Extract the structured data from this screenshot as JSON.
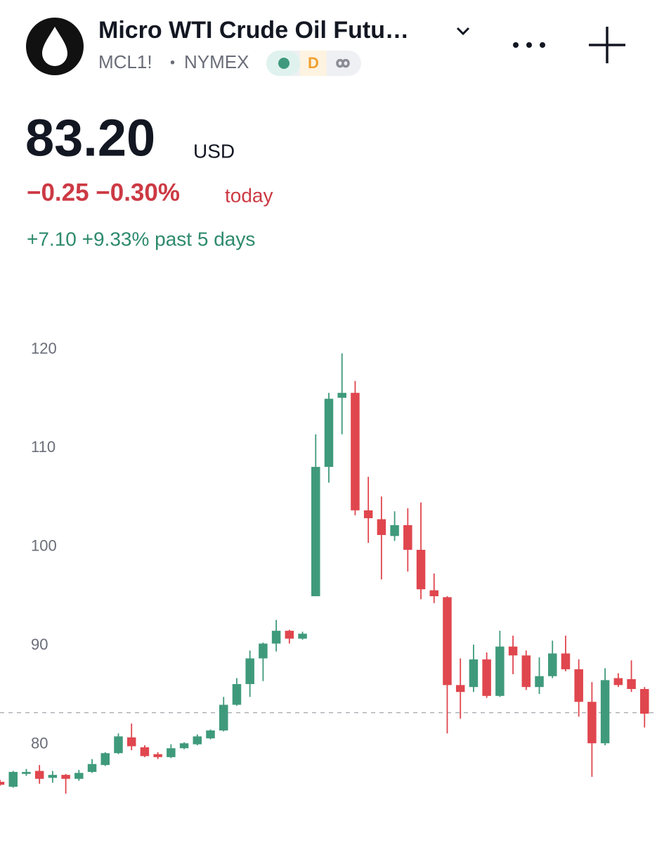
{
  "header": {
    "title": "Micro WTI Crude Oil Futu…",
    "symbol": "MCL1!",
    "separator": "•",
    "exchange": "NYMEX",
    "badge": "D"
  },
  "price": {
    "last": "83.20",
    "currency": "USD",
    "change_today": "−0.25 −0.30%",
    "today_label": "today",
    "change_5d": "+7.10 +9.33% past 5 days"
  },
  "chart_data": {
    "type": "candlestick",
    "open": [
      76.2,
      75.7,
      77.0,
      77.3,
      76.6,
      76.9,
      76.5,
      77.2,
      77.9,
      79.1,
      80.7,
      79.7,
      79.0,
      78.7,
      79.6,
      80.0,
      80.6,
      81.4,
      84.0,
      86.1,
      88.7,
      90.2,
      91.5,
      90.7,
      95.0,
      108.1,
      115.1,
      115.6,
      103.7,
      102.8,
      101.1,
      102.2,
      99.7,
      95.6,
      94.9,
      86.0,
      85.8,
      88.6,
      84.9,
      89.9,
      89.0,
      85.8,
      86.9,
      89.2,
      87.6,
      84.3,
      80.1,
      86.7,
      86.6,
      85.6
    ],
    "high": [
      76.4,
      77.3,
      77.5,
      77.9,
      77.3,
      77.0,
      77.4,
      78.5,
      79.2,
      81.1,
      82.1,
      79.9,
      79.2,
      80.0,
      80.2,
      81.0,
      81.5,
      84.8,
      86.7,
      89.5,
      90.3,
      92.6,
      91.6,
      91.4,
      111.4,
      115.6,
      119.6,
      116.8,
      107.1,
      105.1,
      103.6,
      103.9,
      104.5,
      97.3,
      95.0,
      88.7,
      90.1,
      89.3,
      91.5,
      91.0,
      89.5,
      88.8,
      90.5,
      91.0,
      88.6,
      86.3,
      87.7,
      87.2,
      88.5,
      85.8
    ],
    "low": [
      75.8,
      75.6,
      76.8,
      76.0,
      76.1,
      75.0,
      76.3,
      77.1,
      77.8,
      79.0,
      79.4,
      78.7,
      78.5,
      78.6,
      79.5,
      79.9,
      80.5,
      81.3,
      83.9,
      84.8,
      86.4,
      89.4,
      90.2,
      90.6,
      95.0,
      106.5,
      111.4,
      103.2,
      100.4,
      96.7,
      100.6,
      97.5,
      94.7,
      94.3,
      81.1,
      82.6,
      85.3,
      84.7,
      84.8,
      87.1,
      85.5,
      85.1,
      86.7,
      87.4,
      82.8,
      76.7,
      79.9,
      85.8,
      85.3,
      81.7
    ],
    "close": [
      75.9,
      77.2,
      77.2,
      76.5,
      76.9,
      76.5,
      77.1,
      78.0,
      79.1,
      80.8,
      79.8,
      78.8,
      78.7,
      79.6,
      80.1,
      80.8,
      81.4,
      84.0,
      86.1,
      88.7,
      90.2,
      91.5,
      90.7,
      91.2,
      108.1,
      115.0,
      115.6,
      103.7,
      102.9,
      101.2,
      102.2,
      99.7,
      95.7,
      95.0,
      86.0,
      85.3,
      88.6,
      84.9,
      89.9,
      89.0,
      85.8,
      86.9,
      89.2,
      87.6,
      84.3,
      80.1,
      86.5,
      86.0,
      85.6,
      83.1
    ],
    "up_color": "#3f9a7c",
    "down_color": "#e0464e",
    "ylim": [
      70,
      122
    ],
    "yticks": [
      80,
      90,
      100,
      110,
      120
    ]
  }
}
